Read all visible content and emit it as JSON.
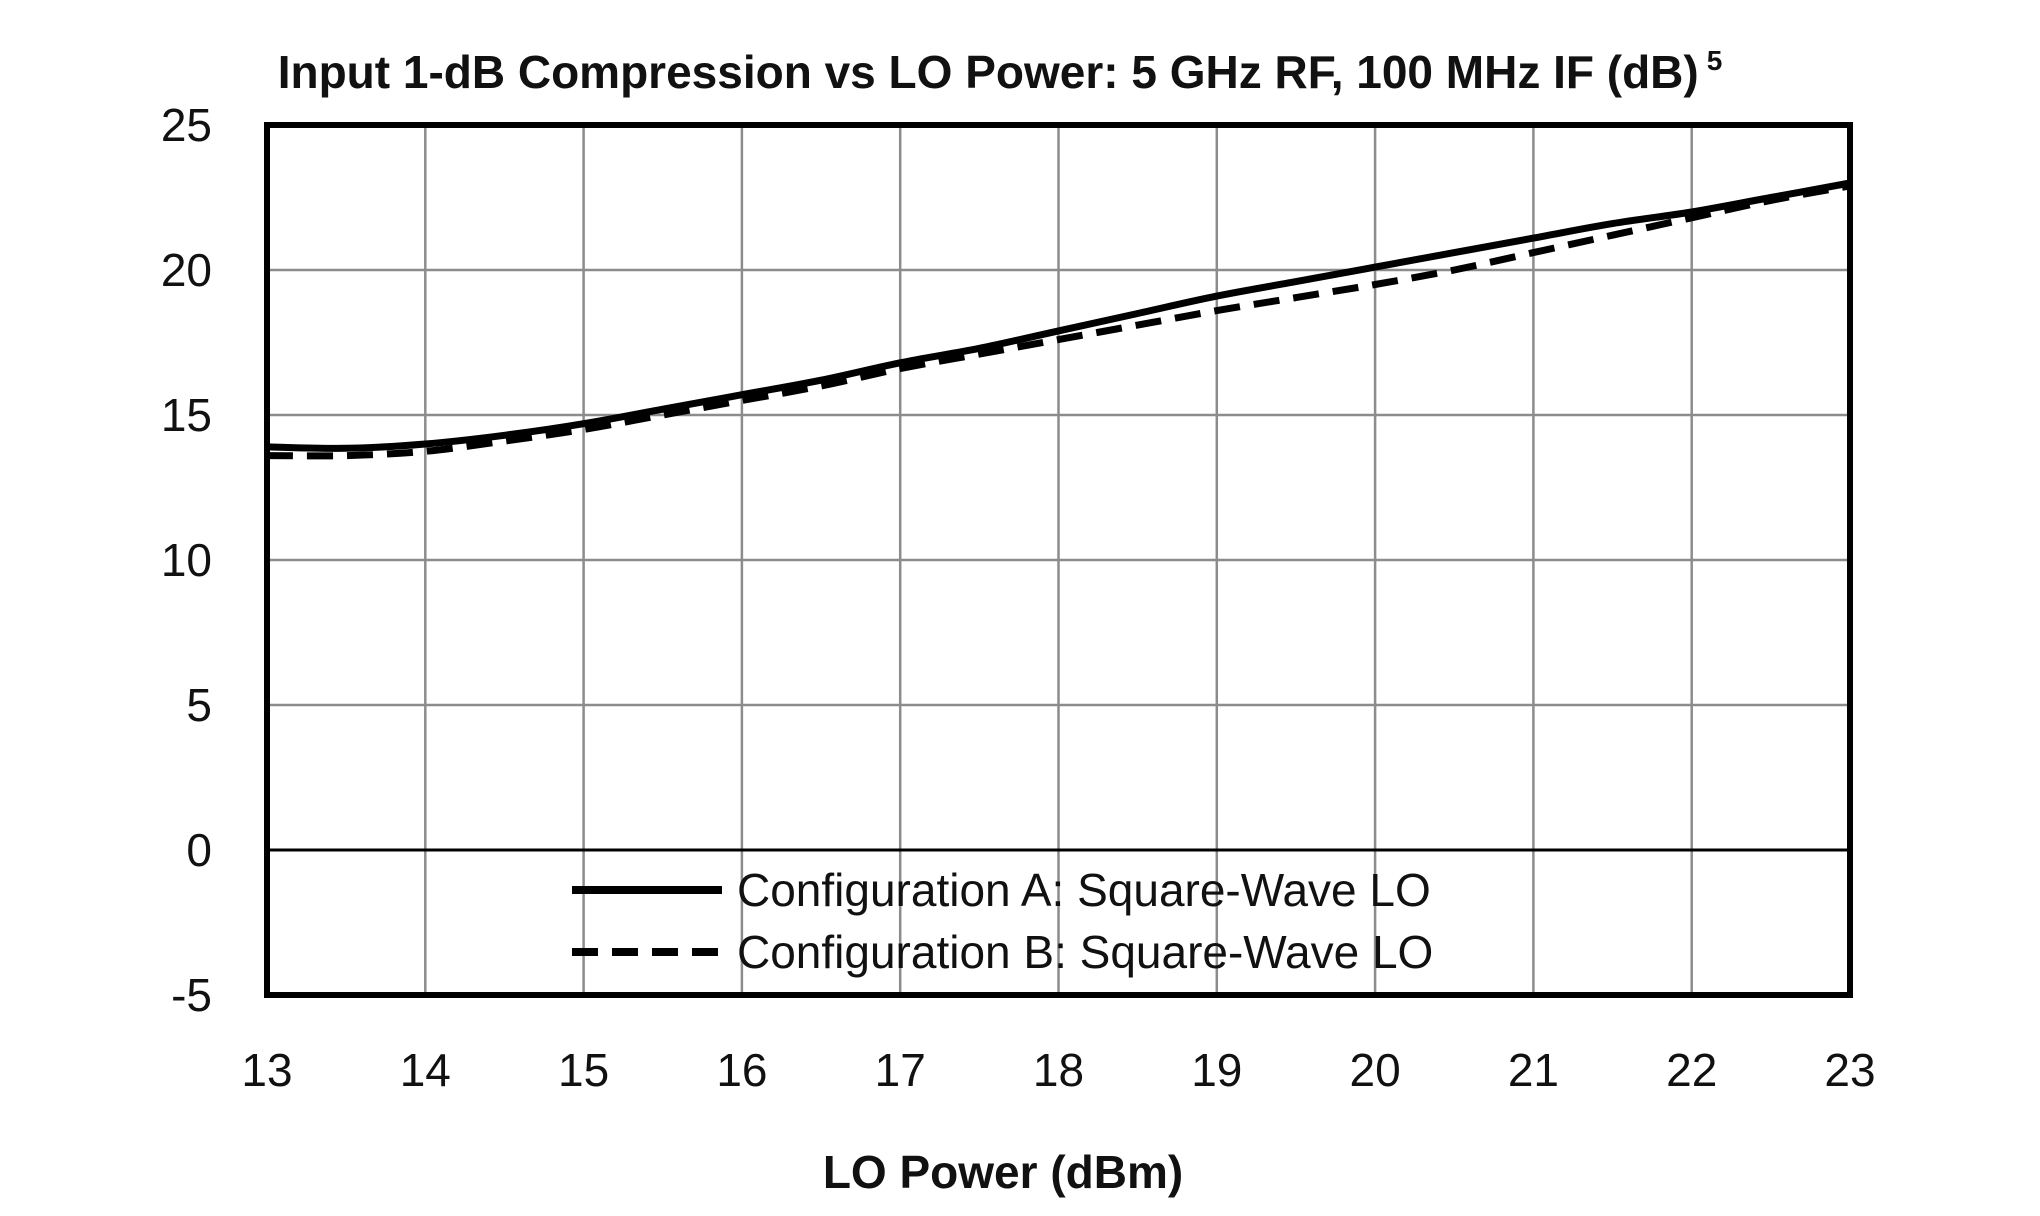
{
  "chart_data": {
    "type": "line",
    "title": "Input 1-dB Compression vs LO Power: 5 GHz RF, 100 MHz IF (dB)",
    "title_superscript": "5",
    "xlabel": "LO Power (dBm)",
    "ylabel": "",
    "xlim": [
      13,
      23
    ],
    "ylim": [
      -5,
      25
    ],
    "xticks": [
      "13",
      "14",
      "15",
      "16",
      "17",
      "18",
      "19",
      "20",
      "21",
      "22",
      "23"
    ],
    "yticks": [
      "-5",
      "0",
      "5",
      "10",
      "15",
      "20",
      "25"
    ],
    "grid": true,
    "legend_position": "bottom-center",
    "series": [
      {
        "name": "Configuration A: Square-Wave LO",
        "style": "solid",
        "color": "#000000",
        "x": [
          13,
          13.5,
          14,
          14.5,
          15,
          15.5,
          16,
          16.5,
          17,
          17.5,
          18,
          18.5,
          19,
          19.5,
          20,
          20.5,
          21,
          21.5,
          22,
          22.5,
          23
        ],
        "y": [
          13.9,
          13.85,
          14.0,
          14.3,
          14.7,
          15.2,
          15.7,
          16.2,
          16.8,
          17.3,
          17.9,
          18.5,
          19.1,
          19.6,
          20.1,
          20.6,
          21.1,
          21.6,
          22.0,
          22.5,
          23.0
        ]
      },
      {
        "name": "Configuration B: Square-Wave LO",
        "style": "dashed",
        "color": "#000000",
        "x": [
          13,
          13.5,
          14,
          14.5,
          15,
          15.5,
          16,
          16.5,
          17,
          17.5,
          18,
          18.5,
          19,
          19.5,
          20,
          20.5,
          21,
          21.5,
          22,
          22.5,
          23
        ],
        "y": [
          13.6,
          13.6,
          13.75,
          14.1,
          14.5,
          15.0,
          15.5,
          16.0,
          16.6,
          17.1,
          17.6,
          18.1,
          18.6,
          19.05,
          19.5,
          20.0,
          20.6,
          21.2,
          21.8,
          22.4,
          22.9
        ]
      }
    ]
  }
}
